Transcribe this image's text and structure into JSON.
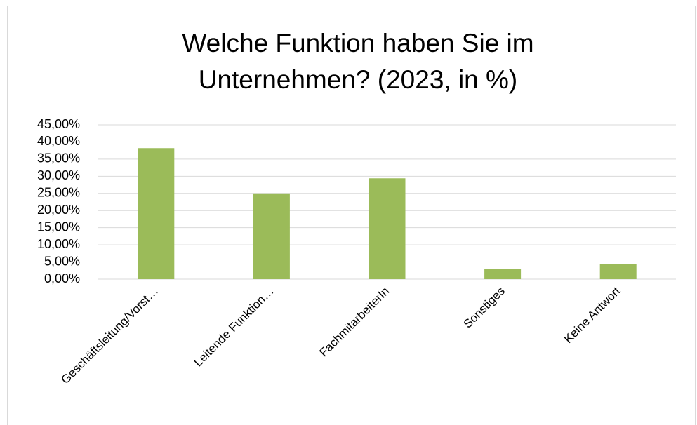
{
  "chart_data": {
    "type": "bar",
    "title": [
      "Welche Funktion haben Sie im",
      "Unternehmen? (2023, in %)"
    ],
    "categories": [
      "Geschäftsleitung/Vorst…",
      "Leitende Funktion…",
      "FachmitarbeiterIn",
      "Sonstiges",
      "Keine Antwort"
    ],
    "values": [
      38.2,
      25,
      29.4,
      3,
      4.5
    ],
    "color": "#9bbb59",
    "ylim": [
      0,
      45
    ],
    "yticks": [
      {
        "value": 0,
        "label": "0,00%"
      },
      {
        "value": 5,
        "label": "5,00%"
      },
      {
        "value": 10,
        "label": "10,00%"
      },
      {
        "value": 15,
        "label": "15,00%"
      },
      {
        "value": 20,
        "label": "20,00%"
      },
      {
        "value": 25,
        "label": "25,00%"
      },
      {
        "value": 30,
        "label": "30,00%"
      },
      {
        "value": 35,
        "label": "35,00%"
      },
      {
        "value": 40,
        "label": "40,00%"
      },
      {
        "value": 45,
        "label": "45,00%"
      }
    ],
    "grid": true
  }
}
